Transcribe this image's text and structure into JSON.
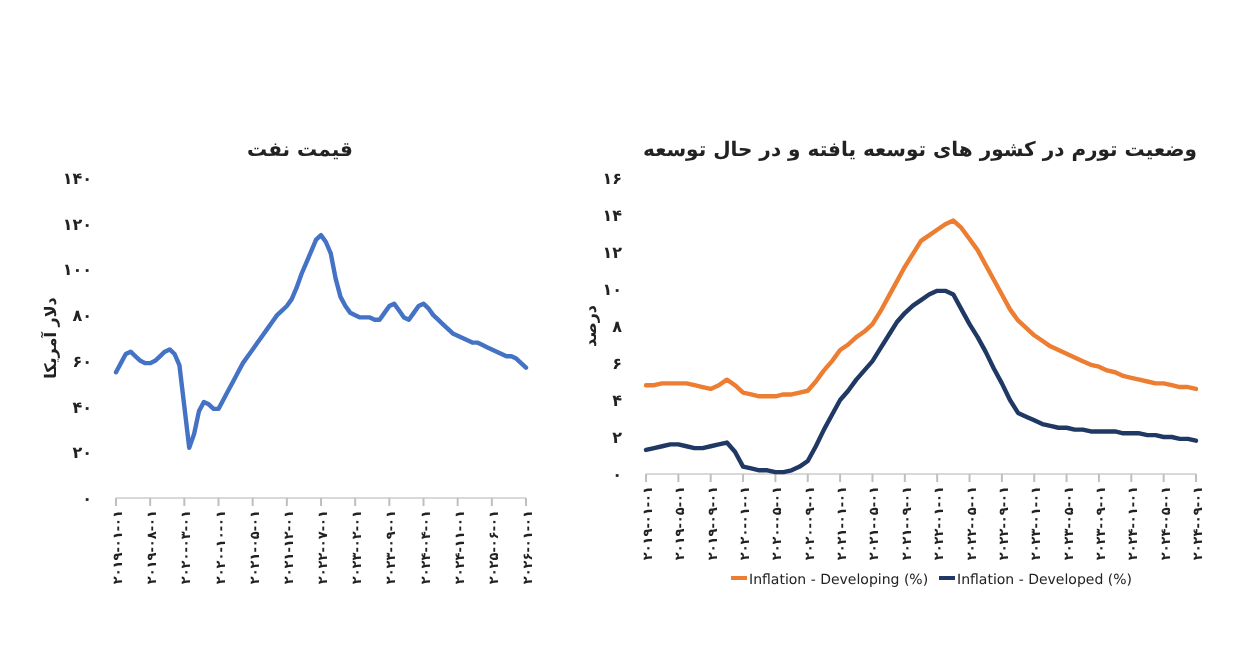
{
  "chart_data": [
    {
      "type": "line",
      "title": "قیمت نفت",
      "ylabel": "دلار آمریکا",
      "ylim": [
        0,
        140
      ],
      "yticks": [
        {
          "value": 0,
          "label": "۰"
        },
        {
          "value": 20,
          "label": "۲۰"
        },
        {
          "value": 40,
          "label": "۴۰"
        },
        {
          "value": 60,
          "label": "۶۰"
        },
        {
          "value": 80,
          "label": "۸۰"
        },
        {
          "value": 100,
          "label": "۱۰۰"
        },
        {
          "value": 120,
          "label": "۱۲۰"
        },
        {
          "value": 140,
          "label": "۱۴۰"
        }
      ],
      "categories": [
        "۲۰۱۹-۰۱-۰۱",
        null,
        null,
        null,
        null,
        null,
        null,
        "۲۰۱۹-۰۸-۰۱",
        null,
        null,
        null,
        null,
        null,
        null,
        "۲۰۲۰-۰۳-۰۱",
        null,
        null,
        null,
        null,
        null,
        null,
        "۲۰۲۰-۱۰-۰۱",
        null,
        null,
        null,
        null,
        null,
        null,
        "۲۰۲۱-۰۵-۰۱",
        null,
        null,
        null,
        null,
        null,
        null,
        "۲۰۲۱-۱۲-۰۱",
        null,
        null,
        null,
        null,
        null,
        null,
        "۲۰۲۲-۰۷-۰۱",
        null,
        null,
        null,
        null,
        null,
        null,
        "۲۰۲۳-۰۲-۰۱",
        null,
        null,
        null,
        null,
        null,
        null,
        "۲۰۲۳-۰۹-۰۱",
        null,
        null,
        null,
        null,
        null,
        null,
        "۲۰۲۴-۰۴-۰۱",
        null,
        null,
        null,
        null,
        null,
        null,
        "۲۰۲۴-۱۱-۰۱",
        null,
        null,
        null,
        null,
        null,
        null,
        "۲۰۲۵-۰۶-۰۱",
        null,
        null,
        null,
        null,
        null,
        null,
        "۲۰۲۶-۰۱-۰۱"
      ],
      "series": [
        {
          "color": "#4472c4",
          "values": [
            55,
            59,
            63,
            64,
            62,
            60,
            59,
            59,
            60,
            62,
            64,
            65,
            63,
            58,
            40,
            22,
            28,
            38,
            42,
            41,
            39,
            39,
            43,
            47,
            51,
            55,
            59,
            62,
            65,
            68,
            71,
            74,
            77,
            80,
            82,
            84,
            87,
            92,
            98,
            103,
            108,
            113,
            115,
            112,
            107,
            96,
            88,
            84,
            81,
            80,
            79,
            79,
            79,
            78,
            78,
            81,
            84,
            85,
            82,
            79,
            78,
            81,
            84,
            85,
            83,
            80,
            78,
            76,
            74,
            72,
            71,
            70,
            69,
            68,
            68,
            67,
            66,
            65,
            64,
            63,
            62,
            62,
            61,
            59,
            57
          ]
        }
      ]
    },
    {
      "type": "line",
      "title": "وضعیت تورم در کشور های توسعه یافته و در حال توسعه",
      "ylabel": "درصد",
      "legend": "bottom",
      "ylim": [
        0,
        16
      ],
      "yticks": [
        {
          "value": 0,
          "label": "۰"
        },
        {
          "value": 2,
          "label": "۲"
        },
        {
          "value": 4,
          "label": "۴"
        },
        {
          "value": 6,
          "label": "۶"
        },
        {
          "value": 8,
          "label": "۸"
        },
        {
          "value": 10,
          "label": "۱۰"
        },
        {
          "value": 12,
          "label": "۱۲"
        },
        {
          "value": 14,
          "label": "۱۴"
        },
        {
          "value": 16,
          "label": "۱۶"
        }
      ],
      "categories": [
        "۲۰۱۹-۰۱-۰۱",
        null,
        null,
        null,
        "۲۰۱۹-۰۵-۰۱",
        null,
        null,
        null,
        "۲۰۱۹-۰۹-۰۱",
        null,
        null,
        null,
        "۲۰۲۰-۰۱-۰۱",
        null,
        null,
        null,
        "۲۰۲۰-۰۵-۰۱",
        null,
        null,
        null,
        "۲۰۲۰-۰۹-۰۱",
        null,
        null,
        null,
        "۲۰۲۱-۰۱-۰۱",
        null,
        null,
        null,
        "۲۰۲۱-۰۵-۰۱",
        null,
        null,
        null,
        "۲۰۲۱-۰۹-۰۱",
        null,
        null,
        null,
        "۲۰۲۲-۰۱-۰۱",
        null,
        null,
        null,
        "۲۰۲۲-۰۵-۰۱",
        null,
        null,
        null,
        "۲۰۲۲-۰۹-۰۱",
        null,
        null,
        null,
        "۲۰۲۳-۰۱-۰۱",
        null,
        null,
        null,
        "۲۰۲۳-۰۵-۰۱",
        null,
        null,
        null,
        "۲۰۲۳-۰۹-۰۱",
        null,
        null,
        null,
        "۲۰۲۴-۰۱-۰۱",
        null,
        null,
        null,
        "۲۰۲۴-۰۵-۰۱",
        null,
        null,
        null,
        "۲۰۲۴-۰۹-۰۱"
      ],
      "series": [
        {
          "name": "Inflation - Developing (%)",
          "color": "#ed7d31",
          "values": [
            4.8,
            4.8,
            4.9,
            4.9,
            4.9,
            4.9,
            4.8,
            4.7,
            4.6,
            4.8,
            5.1,
            4.8,
            4.4,
            4.3,
            4.2,
            4.2,
            4.2,
            4.3,
            4.3,
            4.4,
            4.5,
            5.0,
            5.6,
            6.1,
            6.7,
            7.0,
            7.4,
            7.7,
            8.1,
            8.8,
            9.6,
            10.4,
            11.2,
            11.9,
            12.6,
            12.9,
            13.2,
            13.5,
            13.7,
            13.3,
            12.7,
            12.1,
            11.3,
            10.5,
            9.7,
            8.9,
            8.3,
            7.9,
            7.5,
            7.2,
            6.9,
            6.7,
            6.5,
            6.3,
            6.1,
            5.9,
            5.8,
            5.6,
            5.5,
            5.3,
            5.2,
            5.1,
            5.0,
            4.9,
            4.9,
            4.8,
            4.7,
            4.7,
            4.6
          ]
        },
        {
          "name": "Inflation - Developed (%)",
          "color": "#203864",
          "values": [
            1.3,
            1.4,
            1.5,
            1.6,
            1.6,
            1.5,
            1.4,
            1.4,
            1.5,
            1.6,
            1.7,
            1.2,
            0.4,
            0.3,
            0.2,
            0.2,
            0.1,
            0.1,
            0.2,
            0.4,
            0.7,
            1.5,
            2.4,
            3.2,
            4.0,
            4.5,
            5.1,
            5.6,
            6.1,
            6.8,
            7.5,
            8.2,
            8.7,
            9.1,
            9.4,
            9.7,
            9.9,
            9.9,
            9.7,
            8.9,
            8.1,
            7.4,
            6.6,
            5.7,
            4.9,
            4.0,
            3.3,
            3.1,
            2.9,
            2.7,
            2.6,
            2.5,
            2.5,
            2.4,
            2.4,
            2.3,
            2.3,
            2.3,
            2.3,
            2.2,
            2.2,
            2.2,
            2.1,
            2.1,
            2.0,
            2.0,
            1.9,
            1.9,
            1.8
          ]
        }
      ]
    }
  ]
}
